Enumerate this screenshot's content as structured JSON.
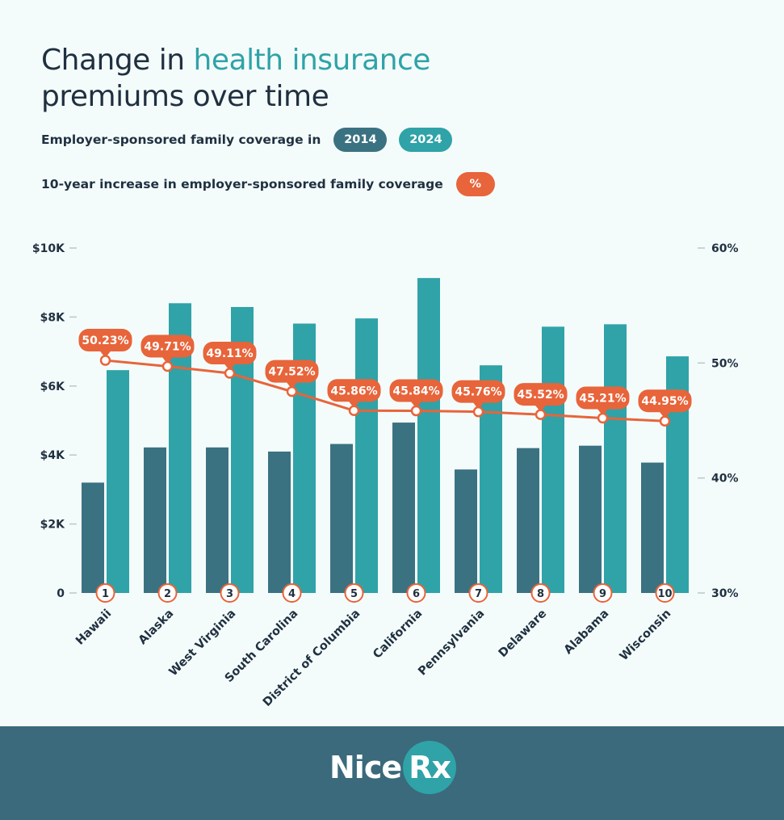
{
  "header": {
    "title_part1": "Change in ",
    "title_highlight": "health insurance",
    "title_line2": "premiums over time",
    "legend1_label": "Employer-sponsored family coverage in",
    "legend2_label": "10-year increase in employer-sponsored family coverage"
  },
  "colors": {
    "bar_2014": "#3b7282",
    "bar_2024": "#2fa3a8",
    "line": "#e8643a",
    "text_dark": "#1f3040"
  },
  "chart_data": {
    "type": "bar",
    "categories": [
      "Hawaii",
      "Alaska",
      "West Virginia",
      "South Carolina",
      "District of Columbia",
      "California",
      "Pennsylvania",
      "Delaware",
      "Alabama",
      "Wisconsin"
    ],
    "ranks": [
      "1",
      "2",
      "3",
      "4",
      "5",
      "6",
      "7",
      "8",
      "9",
      "10"
    ],
    "series": [
      {
        "name": "2014",
        "axis": "left",
        "values": [
          3200,
          4220,
          4220,
          4100,
          4320,
          4940,
          3580,
          4200,
          4270,
          3780
        ]
      },
      {
        "name": "2024",
        "axis": "left",
        "values": [
          6460,
          8400,
          8290,
          7810,
          7960,
          9130,
          6600,
          7720,
          7790,
          6860
        ]
      },
      {
        "name": "%",
        "type": "line",
        "axis": "right",
        "values": [
          50.23,
          49.71,
          49.11,
          47.52,
          45.86,
          45.84,
          45.76,
          45.52,
          45.21,
          44.95
        ],
        "labels": [
          "50.23%",
          "49.71%",
          "49.11%",
          "47.52%",
          "45.86%",
          "45.84%",
          "45.76%",
          "45.52%",
          "45.21%",
          "44.95%"
        ]
      }
    ],
    "ylim": [
      0,
      10000
    ],
    "y_ticks": [
      "0",
      "$2K",
      "$4K",
      "$6K",
      "$8K",
      "$10K"
    ],
    "y2lim": [
      30,
      60
    ],
    "y2_ticks": [
      "30%",
      "40%",
      "50%",
      "60%"
    ],
    "grid": false,
    "legend": "top-left"
  },
  "footer": {
    "brand_part1": "Nice",
    "brand_part2": "Rx"
  }
}
